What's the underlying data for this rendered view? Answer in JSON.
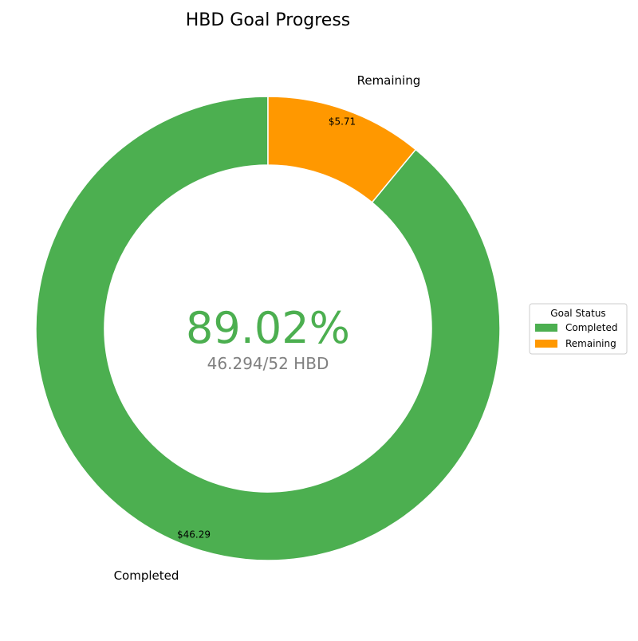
{
  "chart_data": {
    "type": "pie",
    "variant": "donut",
    "title": "HBD Goal Progress",
    "categories": [
      "Completed",
      "Remaining"
    ],
    "values": [
      46.29,
      5.71
    ],
    "value_labels": [
      "$46.29",
      "$5.71"
    ],
    "colors": [
      "#4caf50",
      "#ff9800"
    ],
    "center_text": {
      "percent": "89.02%",
      "detail": "46.294/52 HBD",
      "percent_color": "#4caf50",
      "detail_color": "#808080"
    },
    "legend": {
      "title": "Goal Status",
      "placement": "right",
      "entries": [
        "Completed",
        "Remaining"
      ]
    }
  }
}
